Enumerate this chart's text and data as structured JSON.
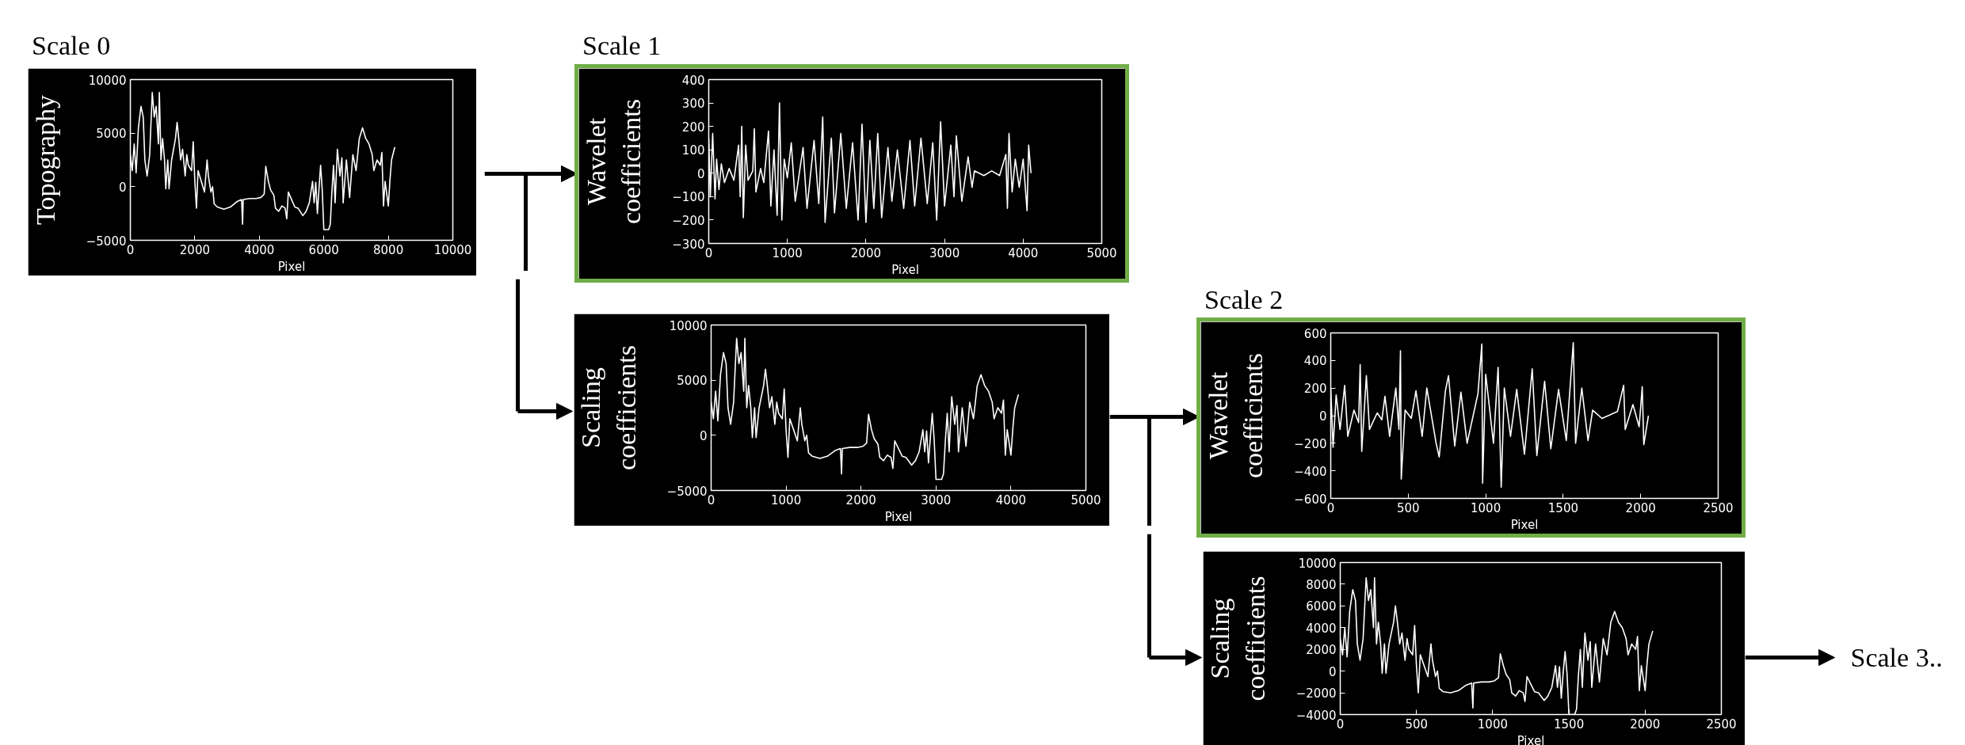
{
  "chart_data": [
    {
      "type": "line",
      "title": "Scale 0",
      "xlabel": "Pixel",
      "ylabel": "Topography",
      "xlim": [
        0,
        10000
      ],
      "xticks": [
        0,
        2000,
        4000,
        6000,
        8000,
        10000
      ],
      "ylim": [
        -5000,
        10000
      ],
      "yticks": [
        -5000,
        0,
        5000,
        10000
      ],
      "series": [
        {
          "color": "#ffffff",
          "x": [
            0,
            60,
            120,
            180,
            250,
            330,
            400,
            450,
            520,
            600,
            680,
            740,
            800,
            870,
            900,
            950,
            1000,
            1060,
            1100,
            1160,
            1200,
            1280,
            1400,
            1450,
            1500,
            1560,
            1620,
            1700,
            1750,
            1800,
            1900,
            1950,
            2000,
            2050,
            2100,
            2200,
            2300,
            2380,
            2420,
            2500,
            2550,
            2600,
            2700,
            2900,
            3100,
            3300,
            3450,
            3480,
            3500,
            3700,
            3900,
            4050,
            4150,
            4200,
            4280,
            4350,
            4450,
            4500,
            4600,
            4700,
            4800,
            4850,
            4900,
            5000,
            5100,
            5200,
            5350,
            5450,
            5550,
            5650,
            5700,
            5750,
            5800,
            5850,
            5900,
            5950,
            6000,
            6150,
            6200,
            6250,
            6300,
            6350,
            6420,
            6500,
            6560,
            6600,
            6700,
            6800,
            6900,
            7000,
            7100,
            7200,
            7300,
            7400,
            7500,
            7550,
            7650,
            7750,
            7800,
            7850,
            7900,
            8000,
            8050,
            8100,
            8200
          ],
          "values": [
            3000,
            1500,
            4000,
            1300,
            5500,
            7500,
            6500,
            2500,
            1000,
            3000,
            8800,
            6500,
            7500,
            4000,
            8800,
            2500,
            4500,
            2500,
            -200,
            2500,
            -200,
            2500,
            4500,
            6000,
            4500,
            2500,
            3500,
            1000,
            3000,
            2000,
            1500,
            4200,
            500,
            -2000,
            1500,
            500,
            -500,
            2500,
            1000,
            -500,
            0,
            -1600,
            -1900,
            -2100,
            -1900,
            -1400,
            -1200,
            -3500,
            -1200,
            -1100,
            -1100,
            -1000,
            -700,
            1900,
            500,
            -300,
            -800,
            -2000,
            -2300,
            -1800,
            -2000,
            -3000,
            -500,
            -1200,
            -1900,
            -2000,
            -2700,
            -2300,
            -1500,
            500,
            -1500,
            400,
            -2500,
            -200,
            2000,
            -300,
            -4000,
            -4000,
            -3500,
            -500,
            2000,
            -1500,
            3500,
            1000,
            2700,
            -1500,
            2500,
            -1000,
            3000,
            1500,
            4500,
            5500,
            4500,
            4000,
            3000,
            1500,
            2500,
            2000,
            3200,
            -1800,
            500,
            -1800,
            600,
            2500,
            3700
          ]
        }
      ]
    },
    {
      "type": "line",
      "title": "Scale 1",
      "xlabel": "Pixel",
      "ylabel": "Wavelet coefficients",
      "xlim": [
        0,
        5000
      ],
      "xticks": [
        0,
        1000,
        2000,
        3000,
        4000,
        5000
      ],
      "ylim": [
        -300,
        400
      ],
      "yticks": [
        -300,
        -200,
        -100,
        0,
        100,
        200,
        300,
        400
      ],
      "series": [
        {
          "color": "#ffffff",
          "x": [
            0,
            20,
            50,
            80,
            100,
            130,
            160,
            200,
            260,
            320,
            380,
            400,
            420,
            440,
            470,
            500,
            560,
            580,
            600,
            660,
            700,
            760,
            790,
            830,
            870,
            900,
            930,
            960,
            1000,
            1050,
            1100,
            1200,
            1250,
            1340,
            1400,
            1450,
            1480,
            1560,
            1600,
            1680,
            1750,
            1830,
            1900,
            1950,
            2000,
            2050,
            2100,
            2150,
            2200,
            2280,
            2330,
            2400,
            2480,
            2560,
            2620,
            2700,
            2780,
            2850,
            2900,
            2950,
            3000,
            3080,
            3120,
            3150,
            3220,
            3300,
            3350,
            3380,
            3500,
            3600,
            3700,
            3780,
            3800,
            3820,
            3860,
            3900,
            3950,
            4000,
            4050,
            4070,
            4100
          ],
          "values": [
            150,
            -100,
            170,
            -110,
            60,
            -70,
            40,
            -40,
            20,
            -30,
            120,
            -100,
            200,
            -190,
            120,
            -30,
            10,
            190,
            -80,
            20,
            -40,
            180,
            -140,
            100,
            -180,
            300,
            -200,
            60,
            -20,
            130,
            -120,
            110,
            -150,
            140,
            -130,
            240,
            -210,
            150,
            -170,
            170,
            -150,
            130,
            -200,
            210,
            -210,
            140,
            -150,
            170,
            -190,
            110,
            -120,
            100,
            -150,
            140,
            -140,
            150,
            -130,
            130,
            -200,
            220,
            -140,
            120,
            -100,
            160,
            -120,
            70,
            -60,
            10,
            -10,
            10,
            -10,
            80,
            -150,
            170,
            -80,
            60,
            -60,
            60,
            -160,
            120,
            0
          ]
        }
      ]
    },
    {
      "type": "line",
      "xlabel": "Pixel",
      "ylabel": "Scaling coefficients",
      "xlim": [
        0,
        5000
      ],
      "xticks": [
        0,
        1000,
        2000,
        3000,
        4000,
        5000
      ],
      "ylim": [
        -5000,
        10000
      ],
      "yticks": [
        -5000,
        0,
        5000,
        10000
      ],
      "series": [
        {
          "color": "#ffffff",
          "x": [
            0,
            30,
            60,
            90,
            125,
            165,
            200,
            225,
            260,
            300,
            340,
            370,
            400,
            435,
            450,
            475,
            500,
            530,
            550,
            580,
            600,
            640,
            700,
            725,
            750,
            780,
            810,
            850,
            875,
            900,
            950,
            975,
            1000,
            1025,
            1050,
            1100,
            1150,
            1190,
            1210,
            1250,
            1275,
            1300,
            1350,
            1450,
            1550,
            1650,
            1725,
            1740,
            1750,
            1850,
            1950,
            2025,
            2075,
            2100,
            2140,
            2175,
            2225,
            2250,
            2300,
            2350,
            2400,
            2425,
            2450,
            2500,
            2550,
            2600,
            2675,
            2725,
            2775,
            2825,
            2850,
            2875,
            2900,
            2925,
            2950,
            2975,
            3000,
            3075,
            3100,
            3125,
            3150,
            3175,
            3210,
            3250,
            3280,
            3300,
            3350,
            3400,
            3450,
            3500,
            3550,
            3600,
            3650,
            3700,
            3750,
            3775,
            3825,
            3875,
            3900,
            3925,
            3950,
            4000,
            4025,
            4050,
            4100
          ],
          "values": [
            3000,
            1500,
            4000,
            1300,
            5500,
            7500,
            6500,
            2500,
            1000,
            3000,
            8800,
            6500,
            7500,
            4000,
            8800,
            2500,
            4500,
            2500,
            -200,
            2500,
            -200,
            2500,
            4500,
            6000,
            4500,
            2500,
            3500,
            1000,
            3000,
            2000,
            1500,
            4200,
            500,
            -2000,
            1500,
            500,
            -500,
            2500,
            1000,
            -500,
            0,
            -1600,
            -1900,
            -2100,
            -1900,
            -1400,
            -1200,
            -3500,
            -1200,
            -1100,
            -1100,
            -1000,
            -700,
            1900,
            500,
            -300,
            -800,
            -2000,
            -2300,
            -1800,
            -2000,
            -3000,
            -500,
            -1200,
            -1900,
            -2000,
            -2700,
            -2300,
            -1500,
            500,
            -1500,
            400,
            -2500,
            -200,
            2000,
            -300,
            -4000,
            -4000,
            -3500,
            -500,
            2000,
            -1500,
            3500,
            1000,
            2700,
            -1500,
            2500,
            -1000,
            3000,
            1500,
            4500,
            5500,
            4500,
            4000,
            3000,
            1500,
            2500,
            2000,
            3200,
            -1800,
            500,
            -1800,
            600,
            2500,
            3700
          ]
        }
      ]
    },
    {
      "type": "line",
      "title": "Scale 2",
      "xlabel": "Pixel",
      "ylabel": "Wavelet coefficients",
      "xlim": [
        0,
        2500
      ],
      "xticks": [
        0,
        500,
        1000,
        1500,
        2000,
        2500
      ],
      "ylim": [
        -600,
        600
      ],
      "yticks": [
        -600,
        -400,
        -200,
        0,
        200,
        400,
        600
      ],
      "series": [
        {
          "color": "#ffffff",
          "x": [
            0,
            15,
            35,
            60,
            90,
            110,
            150,
            180,
            190,
            200,
            230,
            250,
            300,
            330,
            350,
            380,
            420,
            440,
            450,
            455,
            480,
            520,
            550,
            590,
            620,
            680,
            700,
            740,
            760,
            800,
            840,
            880,
            950,
            975,
            980,
            1000,
            1050,
            1080,
            1100,
            1120,
            1160,
            1200,
            1250,
            1300,
            1330,
            1380,
            1420,
            1470,
            1520,
            1565,
            1580,
            1620,
            1660,
            1690,
            1750,
            1850,
            1890,
            1900,
            1950,
            1990,
            2010,
            2020,
            2050
          ],
          "values": [
            200,
            -230,
            150,
            -100,
            220,
            -150,
            40,
            -50,
            370,
            -260,
            290,
            -100,
            20,
            -30,
            140,
            -150,
            200,
            -100,
            470,
            -460,
            40,
            -20,
            180,
            -150,
            200,
            -200,
            -300,
            180,
            290,
            -220,
            170,
            -200,
            160,
            520,
            -490,
            300,
            -200,
            350,
            -520,
            200,
            -150,
            190,
            -280,
            340,
            -290,
            250,
            -240,
            190,
            -180,
            530,
            -200,
            200,
            -180,
            40,
            -20,
            30,
            220,
            -100,
            80,
            -80,
            210,
            -210,
            0
          ]
        }
      ]
    },
    {
      "type": "line",
      "xlabel": "Pixel",
      "ylabel": "Scaling coefficients",
      "xlim": [
        0,
        2500
      ],
      "xticks": [
        0,
        500,
        1000,
        1500,
        2000,
        2500
      ],
      "ylim": [
        -4000,
        10000
      ],
      "yticks": [
        -4000,
        -2000,
        0,
        2000,
        4000,
        6000,
        8000,
        10000
      ],
      "annotations": [
        "Scale 3.."
      ],
      "series": [
        {
          "color": "#ffffff",
          "x": [
            0,
            15,
            30,
            45,
            62,
            82,
            100,
            112,
            130,
            150,
            170,
            185,
            200,
            218,
            225,
            238,
            250,
            265,
            275,
            290,
            300,
            320,
            350,
            362,
            375,
            390,
            405,
            425,
            438,
            450,
            475,
            488,
            500,
            512,
            525,
            550,
            575,
            595,
            605,
            625,
            638,
            650,
            675,
            725,
            775,
            825,
            862,
            870,
            875,
            925,
            975,
            1012,
            1038,
            1050,
            1070,
            1088,
            1112,
            1125,
            1150,
            1175,
            1200,
            1212,
            1225,
            1250,
            1275,
            1300,
            1338,
            1362,
            1388,
            1412,
            1425,
            1438,
            1450,
            1462,
            1475,
            1488,
            1500,
            1538,
            1550,
            1562,
            1575,
            1588,
            1605,
            1625,
            1640,
            1650,
            1675,
            1700,
            1725,
            1750,
            1775,
            1800,
            1825,
            1850,
            1875,
            1888,
            1912,
            1938,
            1950,
            1962,
            1975,
            2000,
            2012,
            2025,
            2050
          ],
          "values": [
            3000,
            1500,
            4000,
            1300,
            5500,
            7500,
            6500,
            2500,
            1000,
            3000,
            8600,
            6500,
            7500,
            4000,
            8600,
            2500,
            4500,
            2500,
            -200,
            2500,
            -200,
            2500,
            4500,
            6000,
            4500,
            2500,
            3500,
            1000,
            3000,
            2000,
            1500,
            4200,
            500,
            -2000,
            1500,
            500,
            -500,
            2500,
            1000,
            -500,
            0,
            -1600,
            -1900,
            -2000,
            -1800,
            -1300,
            -1100,
            -3400,
            -1100,
            -1000,
            -1000,
            -900,
            -600,
            1600,
            500,
            -300,
            -800,
            -2000,
            -2300,
            -1800,
            -2000,
            -2800,
            -500,
            -1200,
            -1900,
            -2000,
            -2700,
            -2300,
            -1500,
            500,
            -1500,
            400,
            -2500,
            -200,
            1800,
            -300,
            -4000,
            -4000,
            -3500,
            -500,
            2000,
            -1500,
            3500,
            1000,
            2700,
            -1500,
            2500,
            -1000,
            3000,
            1500,
            4500,
            5500,
            4500,
            4000,
            3000,
            1500,
            2500,
            2000,
            3200,
            -1800,
            500,
            -1800,
            600,
            2500,
            3700
          ]
        }
      ]
    }
  ]
}
